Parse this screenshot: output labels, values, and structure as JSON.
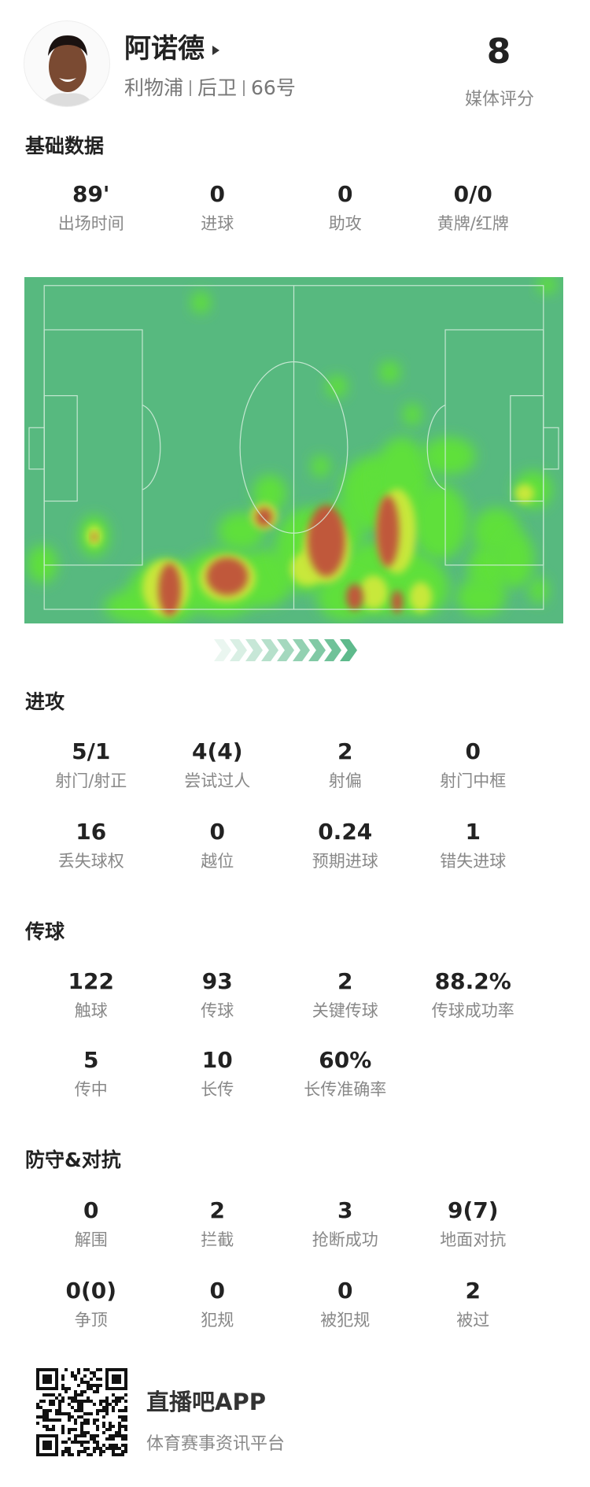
{
  "player": {
    "name": "阿诺德",
    "team": "利物浦",
    "position": "后卫",
    "number": "66号",
    "rating": "8",
    "rating_label": "媒体评分"
  },
  "basic": {
    "title": "基础数据",
    "stats": [
      {
        "value": "89'",
        "label": "出场时间"
      },
      {
        "value": "0",
        "label": "进球"
      },
      {
        "value": "0",
        "label": "助攻"
      },
      {
        "value": "0/0",
        "label": "黄牌/红牌"
      }
    ]
  },
  "heatmap": {
    "colors": {
      "pitch": "#57b97f",
      "low": "#5ee03a",
      "mid": "#c8e83a",
      "high": "#c0583a"
    },
    "attack_direction": "right"
  },
  "attack": {
    "title": "进攻",
    "stats": [
      {
        "value": "5/1",
        "label": "射门/射正"
      },
      {
        "value": "4(4)",
        "label": "尝试过人"
      },
      {
        "value": "2",
        "label": "射偏"
      },
      {
        "value": "0",
        "label": "射门中框"
      },
      {
        "value": "16",
        "label": "丢失球权"
      },
      {
        "value": "0",
        "label": "越位"
      },
      {
        "value": "0.24",
        "label": "预期进球"
      },
      {
        "value": "1",
        "label": "错失进球"
      }
    ]
  },
  "passing": {
    "title": "传球",
    "stats": [
      {
        "value": "122",
        "label": "触球"
      },
      {
        "value": "93",
        "label": "传球"
      },
      {
        "value": "2",
        "label": "关键传球"
      },
      {
        "value": "88.2%",
        "label": "传球成功率"
      },
      {
        "value": "5",
        "label": "传中"
      },
      {
        "value": "10",
        "label": "长传"
      },
      {
        "value": "60%",
        "label": "长传准确率"
      }
    ]
  },
  "defense": {
    "title": "防守&对抗",
    "stats": [
      {
        "value": "0",
        "label": "解围"
      },
      {
        "value": "2",
        "label": "拦截"
      },
      {
        "value": "3",
        "label": "抢断成功"
      },
      {
        "value": "9(7)",
        "label": "地面对抗"
      },
      {
        "value": "0(0)",
        "label": "争顶"
      },
      {
        "value": "0",
        "label": "犯规"
      },
      {
        "value": "0",
        "label": "被犯规"
      },
      {
        "value": "2",
        "label": "被过"
      }
    ]
  },
  "footer": {
    "app_name": "直播吧APP",
    "slogan": "体育赛事资讯平台",
    "icon": "qr-code"
  }
}
